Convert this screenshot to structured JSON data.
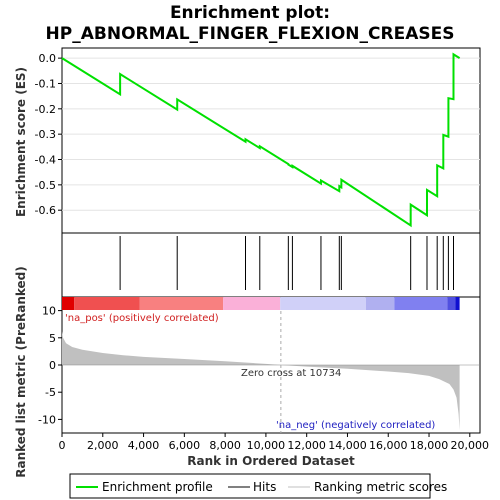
{
  "chart_data": {
    "type": "line",
    "title_line1": "Enrichment plot:",
    "title_line2": "HP_ABNORMAL_FINGER_FLEXION_CREASES",
    "es_panel": {
      "ylabel": "Enrichment score (ES)",
      "ylim": [
        -0.69,
        0.04
      ],
      "yticks": [
        0.0,
        -0.1,
        -0.2,
        -0.3,
        -0.4,
        -0.5,
        -0.6
      ],
      "ytick_labels": [
        "0.0",
        "-0.1",
        "-0.2",
        "-0.3",
        "-0.4",
        "-0.5",
        "-0.6"
      ],
      "series": [
        {
          "name": "Enrichment profile",
          "color": "#00e000",
          "x": [
            0,
            2850,
            2851,
            5650,
            5651,
            9000,
            9001,
            9700,
            9701,
            11100,
            11101,
            11300,
            11301,
            12700,
            12701,
            13600,
            13601,
            13700,
            13701,
            17100,
            17101,
            17900,
            17901,
            18400,
            18401,
            18700,
            18701,
            18950,
            18951,
            19200,
            19201,
            19500
          ],
          "y": [
            0.0,
            -0.143,
            -0.063,
            -0.203,
            -0.163,
            -0.33,
            -0.32,
            -0.355,
            -0.348,
            -0.418,
            -0.42,
            -0.43,
            -0.425,
            -0.495,
            -0.483,
            -0.525,
            -0.505,
            -0.51,
            -0.48,
            -0.66,
            -0.578,
            -0.62,
            -0.52,
            -0.545,
            -0.423,
            -0.435,
            -0.303,
            -0.31,
            -0.158,
            -0.162,
            0.015,
            0.0
          ]
        }
      ]
    },
    "hits": {
      "name": "Hits",
      "ranks": [
        2850,
        5650,
        9000,
        9700,
        11100,
        11300,
        12700,
        13600,
        13700,
        17100,
        17900,
        18400,
        18700,
        18950,
        19200
      ]
    },
    "color_bar": {
      "colors": [
        "#e00000",
        "#f05050",
        "#f88080",
        "#fab0d8",
        "#d0d0f8",
        "#b0b0f0",
        "#8080f0",
        "#5050e0",
        "#1010d0"
      ],
      "boundaries": [
        0,
        600,
        3800,
        7900,
        10700,
        14900,
        16300,
        18900,
        19300,
        19500
      ]
    },
    "ranked_metric": {
      "name": "Ranking metric scores",
      "ylabel": "Ranked list metric (PreRanked)",
      "ylim": [
        -12.5,
        12.5
      ],
      "yticks": [
        10,
        5,
        0,
        -5,
        -10
      ],
      "ytick_labels": [
        "10",
        "5",
        "0",
        "-5",
        "-10"
      ],
      "fill_color": "#c0c0c0",
      "x": [
        0,
        50,
        200,
        500,
        1000,
        2000,
        3000,
        4000,
        6000,
        8000,
        10000,
        10734,
        12000,
        14000,
        16000,
        17000,
        18000,
        18500,
        19000,
        19200,
        19350,
        19450,
        19500
      ],
      "y": [
        6.2,
        5.0,
        4.0,
        3.3,
        2.8,
        2.2,
        1.8,
        1.5,
        1.1,
        0.7,
        0.2,
        0.0,
        -0.3,
        -0.7,
        -1.2,
        -1.5,
        -2.0,
        -2.6,
        -3.5,
        -4.5,
        -6.0,
        -9.0,
        -12.0
      ],
      "zero_cross_label": "Zero cross at 10734",
      "zero_cross_x": 10734,
      "pos_label": "'na_pos' (positively correlated)",
      "neg_label": "'na_neg' (negatively correlated)"
    },
    "xlabel": "Rank in Ordered Dataset",
    "xlim": [
      0,
      20500
    ],
    "xticks": [
      0,
      2000,
      4000,
      6000,
      8000,
      10000,
      12000,
      14000,
      16000,
      18000,
      20000
    ],
    "xtick_labels": [
      "0",
      "2,000",
      "4,000",
      "6,000",
      "8,000",
      "10,000",
      "12,000",
      "14,000",
      "16,000",
      "18,000",
      "20,000"
    ],
    "legend": {
      "placement": "bottom",
      "items": [
        {
          "label": "Enrichment profile",
          "color": "#00e000"
        },
        {
          "label": "Hits",
          "color": "#000000"
        },
        {
          "label": "Ranking metric scores",
          "color": "#c0c0c0"
        }
      ]
    }
  }
}
